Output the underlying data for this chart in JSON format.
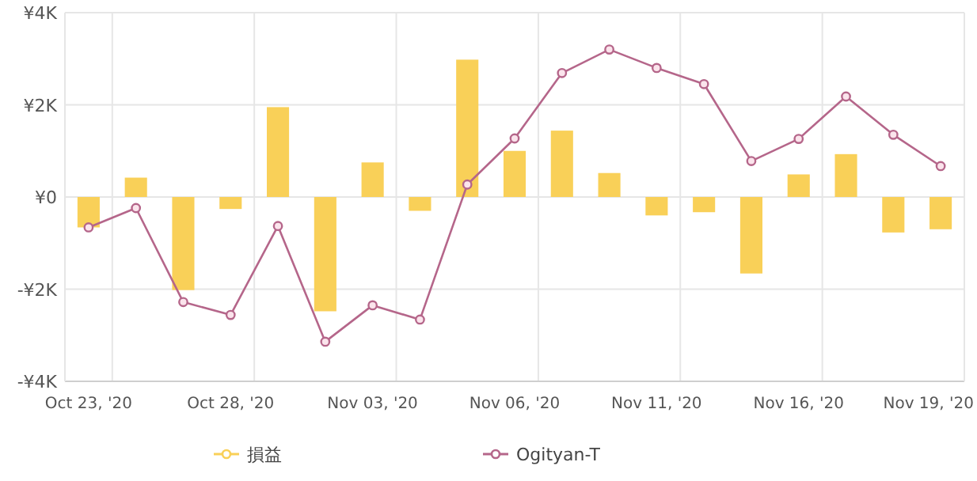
{
  "chart_data": {
    "type": "bar",
    "categories": [
      "Oct 23, '20",
      null,
      null,
      "Oct 28, '20",
      null,
      null,
      "Nov 03, '20",
      null,
      null,
      "Nov 06, '20",
      null,
      null,
      "Nov 11, '20",
      null,
      null,
      "Nov 16, '20",
      null,
      null,
      "Nov 19, '20"
    ],
    "series": [
      {
        "name": "損益",
        "color": "#f9d058",
        "values": [
          -660,
          420,
          -2020,
          -260,
          1950,
          -2480,
          750,
          -300,
          2980,
          1000,
          1440,
          520,
          -400,
          -330,
          -1660,
          490,
          930,
          -770,
          -700
        ]
      },
      {
        "name": "Ogityan-T",
        "type": "line",
        "color": "#b5668a",
        "marker": "circle",
        "values": [
          -660,
          -240,
          -2280,
          -2560,
          -630,
          -3140,
          -2350,
          -2660,
          270,
          1270,
          2690,
          3200,
          2800,
          2450,
          780,
          1260,
          2180,
          1350,
          670
        ]
      }
    ],
    "ylim": [
      -4000,
      4000
    ],
    "yticks": [
      {
        "value": 4000,
        "label": "¥4K"
      },
      {
        "value": 2000,
        "label": "¥2K"
      },
      {
        "value": 0,
        "label": "¥0"
      },
      {
        "value": -2000,
        "label": "-¥2K"
      },
      {
        "value": -4000,
        "label": "-¥4K"
      }
    ],
    "grid": true,
    "legend": "bottom"
  }
}
